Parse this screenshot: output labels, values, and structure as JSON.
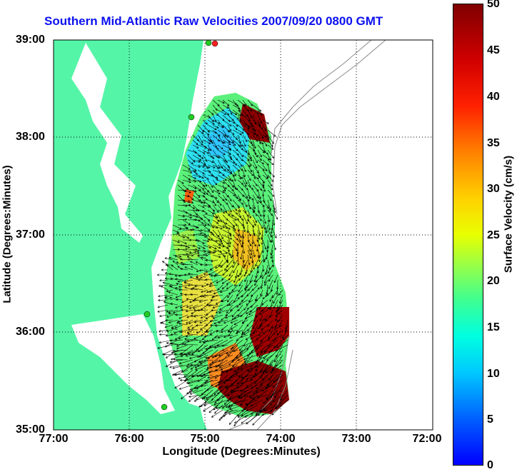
{
  "title": "Southern Mid-Atlantic Raw Velocities 2007/09/20 0800 GMT",
  "x_axis": {
    "label": "Longitude (Degrees:Minutes)",
    "ticks": [
      "77:00",
      "76:00",
      "75:00",
      "74:00",
      "73:00",
      "72:00"
    ]
  },
  "y_axis": {
    "label": "Latitude (Degrees:Minutes)",
    "ticks": [
      "39:00",
      "38:00",
      "37:00",
      "36:00",
      "35:00"
    ]
  },
  "colorbar": {
    "label": "Surface Velocity (cm/s)",
    "ticks": [
      "50",
      "45",
      "40",
      "35",
      "30",
      "25",
      "20",
      "15",
      "10",
      "5",
      "0"
    ],
    "range": [
      0,
      50
    ],
    "colormap": "jet"
  },
  "colors": {
    "land": "#55f5a8",
    "title": "#0b10f0",
    "stations": "#22cc22",
    "arrows": "#000000"
  }
}
